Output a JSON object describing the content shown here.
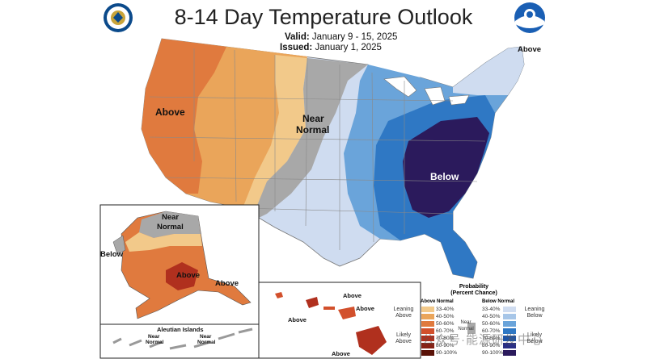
{
  "title": "8-14 Day Temperature Outlook",
  "valid": {
    "label": "Valid:",
    "value": "January 9 - 15, 2025"
  },
  "issued": {
    "label": "Issued:",
    "value": "January 1, 2025"
  },
  "logos": {
    "left": "doc-seal",
    "right": "noaa-logo"
  },
  "map_labels": {
    "above_west": "Above",
    "near_normal_plains": "Near",
    "near_normal_plains_2": "Normal",
    "below_southeast": "Below",
    "above_northeast": "Above",
    "alaska_near": "Near",
    "alaska_normal": "Normal",
    "alaska_below": "Below",
    "alaska_above": "Above",
    "alaska_above_se": "Above",
    "aleutian_title": "Aleutian Islands",
    "aleutian_near_1": "Near",
    "aleutian_normal_1": "Normal",
    "aleutian_near_2": "Near",
    "aleutian_normal_2": "Normal",
    "hawaii_above_1": "Above",
    "hawaii_above_2": "Above",
    "hawaii_above_3": "Above",
    "hawaii_above_4": "Above"
  },
  "legend": {
    "title_1": "Probability",
    "title_2": "(Percent Chance)",
    "above_head": "Above Normal",
    "below_head": "Below Normal",
    "near_normal_1": "Near",
    "near_normal_2": "Normal",
    "leaning_above_1": "Leaning",
    "leaning_above_2": "Above",
    "likely_above_1": "Likely",
    "likely_above_2": "Above",
    "leaning_below_1": "Leaning",
    "leaning_below_2": "Below",
    "likely_below_1": "Likely",
    "likely_below_2": "Below",
    "above": [
      {
        "range": "33-40%",
        "color": "#f2c98a"
      },
      {
        "range": "40-50%",
        "color": "#eaa55a"
      },
      {
        "range": "50-60%",
        "color": "#e07a3e"
      },
      {
        "range": "60-70%",
        "color": "#d2502c"
      },
      {
        "range": "70-80%",
        "color": "#b0301e"
      },
      {
        "range": "80-90%",
        "color": "#862216"
      },
      {
        "range": "90-100%",
        "color": "#5a1208"
      }
    ],
    "below": [
      {
        "range": "33-40%",
        "color": "#cfdcf0"
      },
      {
        "range": "40-50%",
        "color": "#a7c6e8"
      },
      {
        "range": "50-60%",
        "color": "#6aa4da"
      },
      {
        "range": "60-70%",
        "color": "#2f78c4"
      },
      {
        "range": "70-80%",
        "color": "#1f54a6"
      },
      {
        "range": "80-90%",
        "color": "#2a2f85"
      },
      {
        "range": "90-100%",
        "color": "#2b1a5c"
      }
    ],
    "near_color": "#a8a8a8"
  },
  "watermark": "公众号·能源研发中心"
}
